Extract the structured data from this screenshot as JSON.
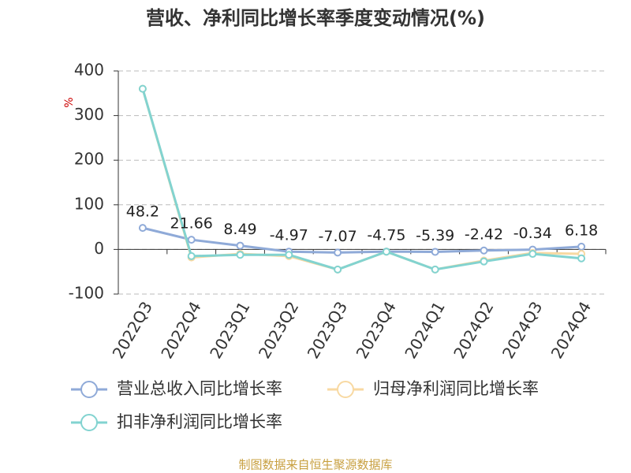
{
  "chart_data": {
    "type": "line",
    "title": "营收、净利同比增长率季度变动情况(%)",
    "y_label": "%",
    "categories": [
      "2022Q3",
      "2022Q4",
      "2023Q1",
      "2023Q2",
      "2023Q3",
      "2023Q4",
      "2024Q1",
      "2024Q2",
      "2024Q3",
      "2024Q4"
    ],
    "series": [
      {
        "name": "营业总收入同比增长率",
        "color": "#8faad8",
        "values": [
          48.2,
          21.66,
          8.49,
          -4.97,
          -7.07,
          -4.75,
          -5.39,
          -2.42,
          -0.34,
          6.18
        ]
      },
      {
        "name": "归母净利润同比增长率",
        "color": "#f8d9a2",
        "values": [
          360,
          -18,
          -10,
          -15,
          -45,
          -5,
          -45,
          -25,
          -8,
          -10
        ]
      },
      {
        "name": "扣非净利润同比增长率",
        "color": "#82d3d0",
        "values": [
          360,
          -15,
          -12,
          -12,
          -45,
          -5,
          -45,
          -27,
          -10,
          -20
        ]
      }
    ],
    "ylim": [
      -100,
      400
    ],
    "yticks": [
      -100,
      0,
      100,
      200,
      300,
      400
    ],
    "grid": true,
    "source": "制图数据来自恒生聚源数据库"
  }
}
